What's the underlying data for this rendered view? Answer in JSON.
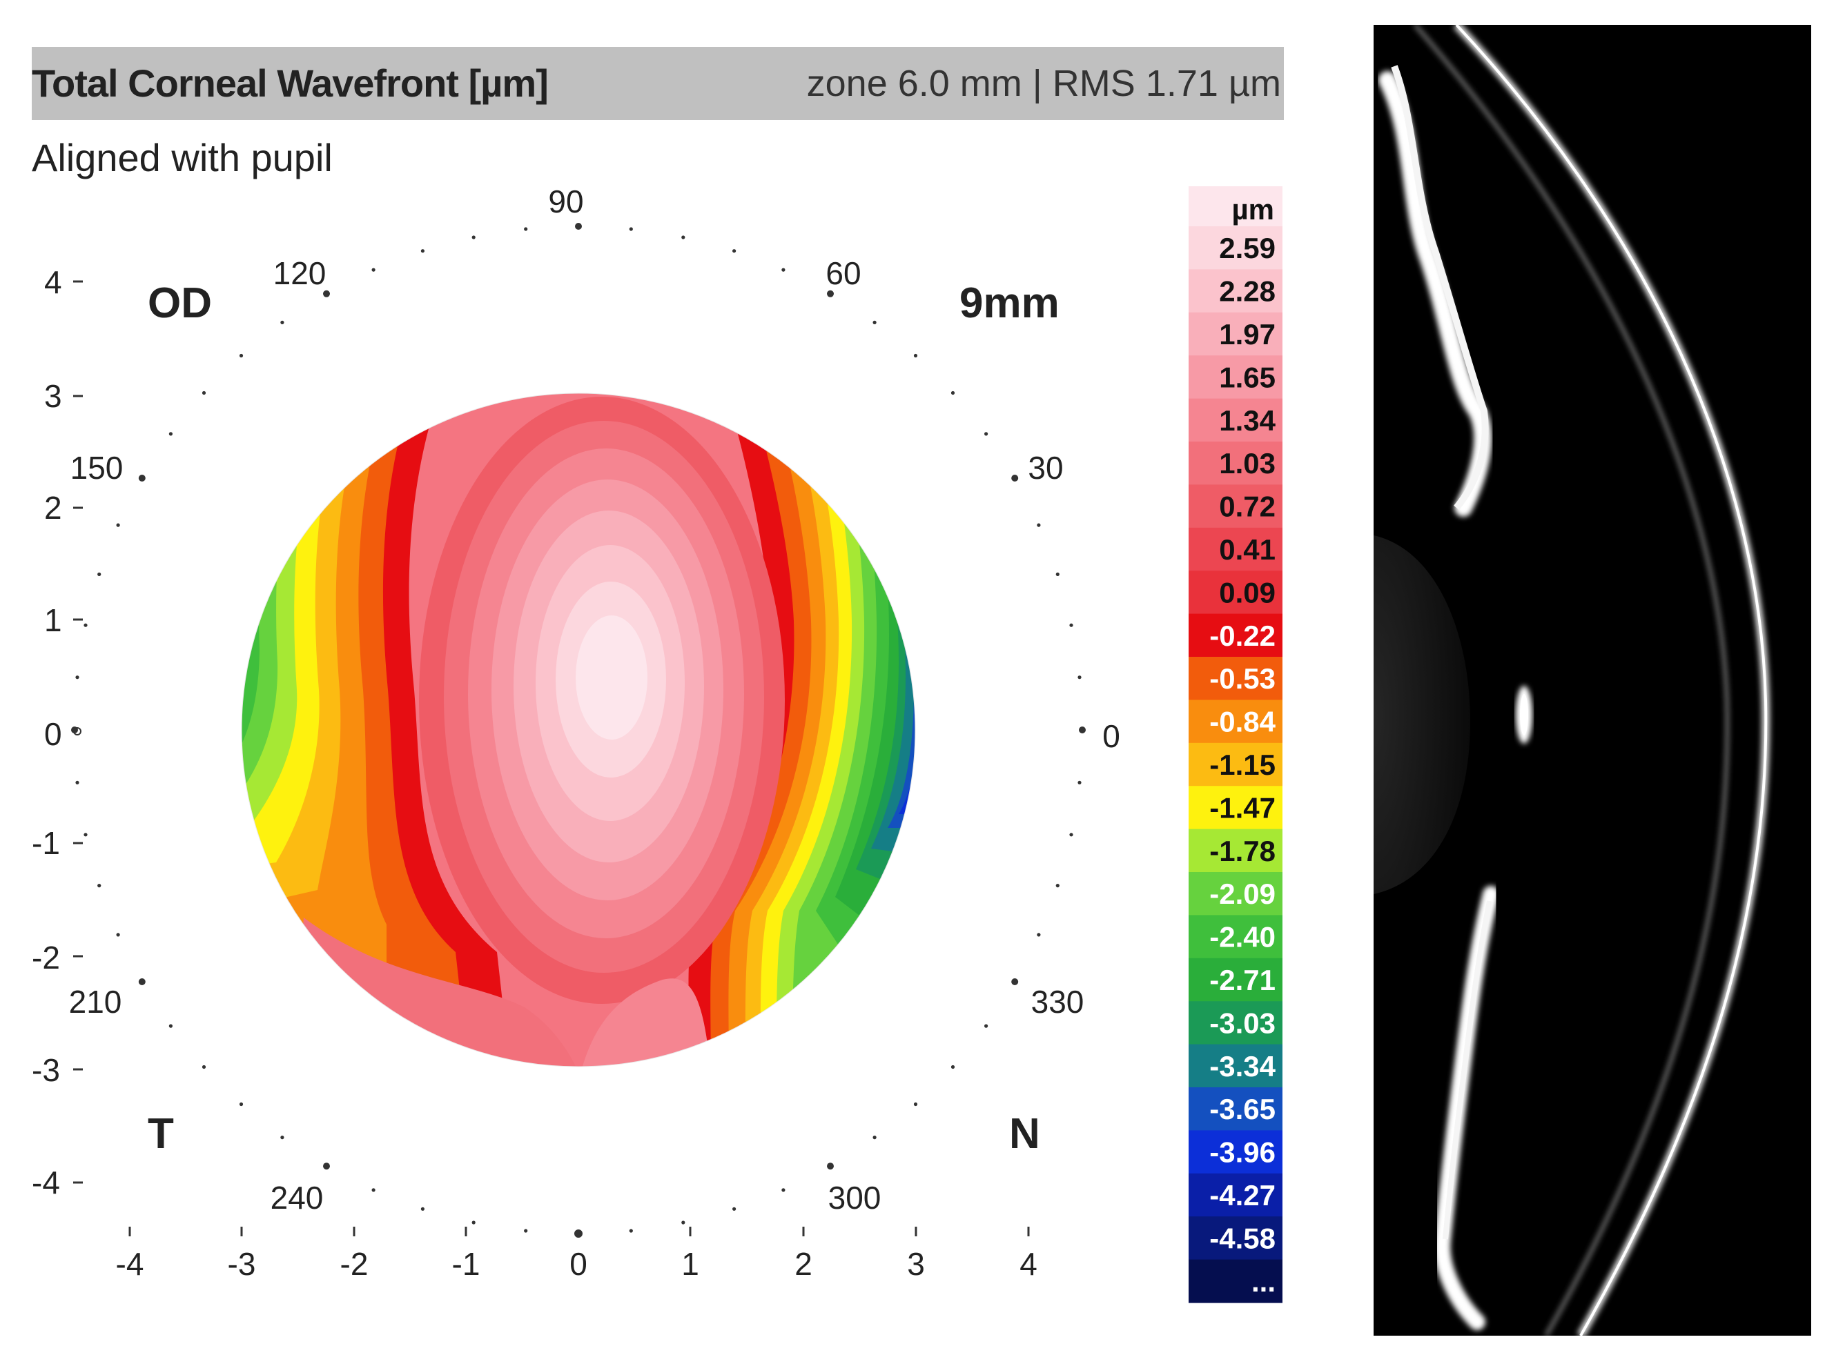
{
  "header": {
    "title": "Total Corneal Wavefront [µm]",
    "zone_info": "zone 6.0 mm | RMS 1.71 µm"
  },
  "subtitle": "Aligned with pupil",
  "map": {
    "eye_label": "OD",
    "diameter_label": "9mm",
    "temporal_label": "T",
    "nasal_label": "N",
    "angle_labels": [
      "90",
      "60",
      "120",
      "150",
      "30",
      "0",
      "0",
      "210",
      "330",
      "240",
      "300"
    ],
    "y_axis_ticks": [
      "4",
      "3",
      "2",
      "1",
      "-1",
      "-2",
      "-3",
      "-4"
    ],
    "x_axis_ticks": [
      "-4",
      "-3",
      "-2",
      "-1",
      "0",
      "1",
      "2",
      "3",
      "4"
    ]
  },
  "legend": {
    "unit": "µm",
    "entries": [
      {
        "label": "2.59",
        "color": "#fcd7de"
      },
      {
        "label": "2.28",
        "color": "#fbc3cc"
      },
      {
        "label": "1.97",
        "color": "#f9afba"
      },
      {
        "label": "1.65",
        "color": "#f79aa6"
      },
      {
        "label": "1.34",
        "color": "#f58591"
      },
      {
        "label": "1.03",
        "color": "#f2707b"
      },
      {
        "label": "0.72",
        "color": "#ef5c66"
      },
      {
        "label": "0.41",
        "color": "#ec4651"
      },
      {
        "label": "0.09",
        "color": "#e9323b"
      },
      {
        "label": "-0.22",
        "color": "#e60d12"
      },
      {
        "label": "-0.53",
        "color": "#f25c0c"
      },
      {
        "label": "-0.84",
        "color": "#f98d0e"
      },
      {
        "label": "-1.15",
        "color": "#fcbb12"
      },
      {
        "label": "-1.47",
        "color": "#fef20e"
      },
      {
        "label": "-1.78",
        "color": "#a6e834"
      },
      {
        "label": "-2.09",
        "color": "#66d23e"
      },
      {
        "label": "-2.40",
        "color": "#3fbf3c"
      },
      {
        "label": "-2.71",
        "color": "#2aae3a"
      },
      {
        "label": "-3.03",
        "color": "#1b9a56"
      },
      {
        "label": "-3.34",
        "color": "#157e86"
      },
      {
        "label": "-3.65",
        "color": "#1450bf"
      },
      {
        "label": "-3.96",
        "color": "#0c2fd8"
      },
      {
        "label": "-4.27",
        "color": "#0a1fa8"
      },
      {
        "label": "-4.58",
        "color": "#08197c"
      },
      {
        "label": "...",
        "color": "#050e4f"
      }
    ],
    "top_color": "#fde6ec"
  }
}
